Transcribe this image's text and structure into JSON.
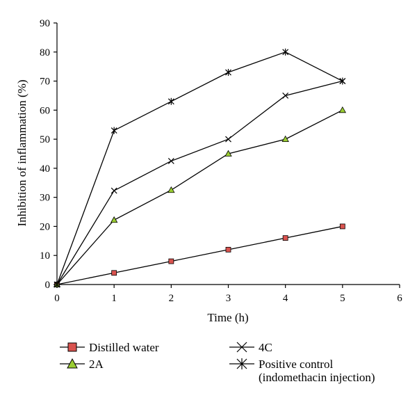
{
  "chart_data": {
    "type": "line",
    "xlabel": "Time (h)",
    "ylabel": "Inhibition of inflammation (%)",
    "xlim": [
      0,
      6
    ],
    "ylim": [
      0,
      90
    ],
    "xticks": [
      "0",
      "1",
      "2",
      "3",
      "4",
      "5",
      "6"
    ],
    "yticks": [
      "0",
      "10",
      "20",
      "30",
      "40",
      "50",
      "60",
      "70",
      "80",
      "90"
    ],
    "grid": false,
    "legend_position": "bottom",
    "x": [
      0,
      1,
      2,
      3,
      4,
      5
    ],
    "series": [
      {
        "name": "Distilled water",
        "marker": "square",
        "marker_color": "#d9534f",
        "values": [
          0,
          4,
          8,
          12,
          16,
          20
        ]
      },
      {
        "name": "2A",
        "marker": "triangle",
        "marker_color": "#9acd32",
        "values": [
          0,
          22.2,
          32.5,
          45,
          50,
          60
        ]
      },
      {
        "name": "4C",
        "marker": "x",
        "marker_color": "#000000",
        "values": [
          0,
          32.3,
          42.5,
          50,
          65,
          70
        ]
      },
      {
        "name": "Positive control",
        "name_line2": "(indomethacin injection)",
        "marker": "star",
        "marker_color": "#000000",
        "values": [
          0,
          53,
          63,
          73,
          80,
          70
        ]
      }
    ]
  }
}
